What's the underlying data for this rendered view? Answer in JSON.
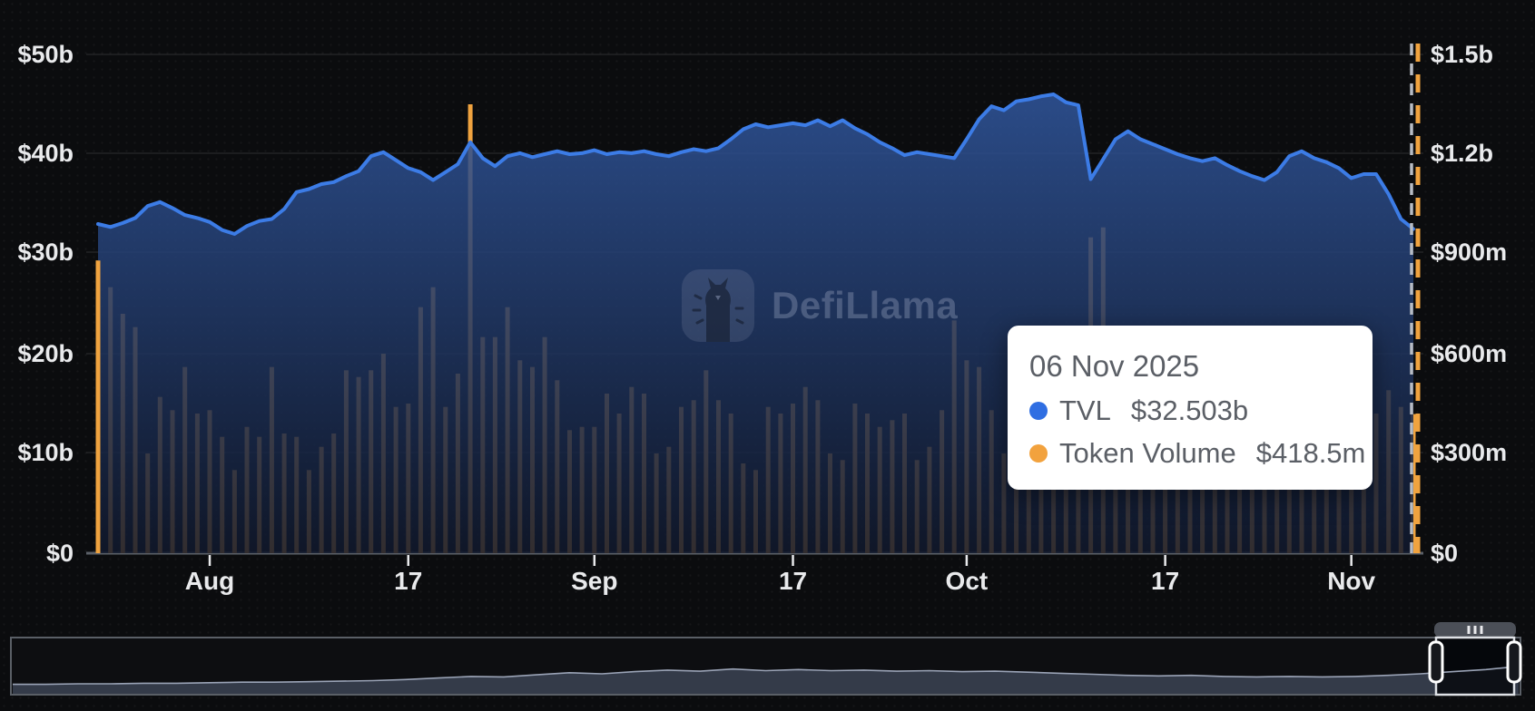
{
  "watermark": {
    "brand": "DefiLlama",
    "logo_icon": "llama-logo-icon"
  },
  "tooltip": {
    "date": "06 Nov 2025",
    "rows": [
      {
        "label": "TVL",
        "value": "$32.503b",
        "color": "#2f6ee2"
      },
      {
        "label": "Token Volume",
        "value": "$418.5m",
        "color": "#f2a23e"
      }
    ]
  },
  "axes": {
    "left_ticks": [
      "$50b",
      "$40b",
      "$30b",
      "$20b",
      "$10b",
      "$0"
    ],
    "right_ticks": [
      "$1.5b",
      "$1.2b",
      "$900m",
      "$600m",
      "$300m",
      "$0"
    ],
    "x_ticks": [
      "Aug",
      "17",
      "Sep",
      "17",
      "Oct",
      "17",
      "Nov"
    ]
  },
  "colors": {
    "background": "#0b0c0e",
    "tvl_line": "#3c7ce6",
    "area_top": "rgba(49,88,160,0.85)",
    "area_bottom": "rgba(16,24,44,0.85)",
    "volume_bar": "#f0a33f",
    "axis_text": "#e9eaec",
    "baseline": "#5b6068",
    "gridline": "rgba(255,255,255,0.07)",
    "crosshair_gray": "#b7bcc4",
    "tooltip_text": "#5b5f66",
    "navigator_border": "#5a5f66",
    "navigator_fill": "#394050",
    "navigator_line": "#9aa3b6",
    "handle_stroke": "#ffffff",
    "tab_fill": "#4b4f57"
  },
  "chart_data": {
    "type": "mixed",
    "title": "",
    "x_start_date": "2025-07-23",
    "x_end_date": "2025-11-06",
    "x_frequency": "daily",
    "x_tick_labels": [
      "Aug",
      "17",
      "Sep",
      "17",
      "Oct",
      "17",
      "Nov"
    ],
    "x_tick_day_indices": [
      9,
      25,
      40,
      56,
      70,
      86,
      101
    ],
    "left_axis": {
      "label": "TVL",
      "unit": "$b",
      "range": [
        0,
        50
      ],
      "ticks": [
        0,
        10,
        20,
        30,
        40,
        50
      ]
    },
    "right_axis": {
      "label": "Token Volume",
      "unit": "$m",
      "range": [
        0,
        1500
      ],
      "ticks": [
        0,
        300,
        600,
        900,
        1200,
        1500
      ]
    },
    "grid": "horizontal-faint",
    "legend_position": "tooltip-only",
    "highlighted_date": "06 Nov 2025",
    "highlighted_values": {
      "TVL": "$32.503b",
      "Token Volume": "$418.5m"
    },
    "series": [
      {
        "name": "TVL",
        "type": "area",
        "axis": "left",
        "unit": "$b",
        "color": "#3c7ce6",
        "values": [
          33.0,
          32.7,
          33.1,
          33.6,
          34.8,
          35.2,
          34.6,
          33.9,
          33.6,
          33.2,
          32.4,
          32.0,
          32.8,
          33.3,
          33.5,
          34.5,
          36.2,
          36.5,
          37.0,
          37.2,
          37.8,
          38.3,
          39.8,
          40.2,
          39.4,
          38.6,
          38.2,
          37.4,
          38.2,
          39.0,
          41.2,
          39.6,
          38.8,
          39.8,
          40.1,
          39.7,
          40.0,
          40.3,
          40.0,
          40.1,
          40.4,
          40.0,
          40.2,
          40.1,
          40.3,
          40.0,
          39.8,
          40.2,
          40.5,
          40.3,
          40.6,
          41.5,
          42.5,
          43.0,
          42.7,
          42.9,
          43.1,
          42.9,
          43.4,
          42.8,
          43.4,
          42.6,
          42.0,
          41.2,
          40.6,
          39.9,
          40.2,
          40.0,
          39.8,
          39.6,
          41.5,
          43.5,
          44.8,
          44.4,
          45.3,
          45.5,
          45.8,
          46.0,
          45.2,
          44.9,
          37.5,
          39.5,
          41.5,
          42.3,
          41.5,
          41.0,
          40.5,
          40.0,
          39.6,
          39.3,
          39.6,
          38.9,
          38.3,
          37.8,
          37.4,
          38.2,
          39.8,
          40.3,
          39.6,
          39.2,
          38.6,
          37.6,
          38.0,
          38.0,
          36.0,
          33.5,
          32.503
        ]
      },
      {
        "name": "Token Volume",
        "type": "bar",
        "axis": "right",
        "unit": "$m",
        "color": "#f0a33f",
        "values": [
          880,
          800,
          720,
          680,
          300,
          470,
          430,
          560,
          420,
          430,
          350,
          250,
          380,
          350,
          560,
          360,
          350,
          250,
          320,
          360,
          550,
          530,
          550,
          600,
          440,
          450,
          740,
          800,
          440,
          540,
          1350,
          650,
          650,
          740,
          580,
          560,
          650,
          520,
          370,
          380,
          380,
          480,
          420,
          500,
          480,
          300,
          320,
          440,
          460,
          550,
          460,
          420,
          270,
          250,
          440,
          420,
          450,
          500,
          460,
          300,
          280,
          450,
          420,
          380,
          400,
          420,
          280,
          320,
          430,
          700,
          580,
          560,
          430,
          300,
          330,
          450,
          460,
          430,
          460,
          550,
          950,
          980,
          530,
          450,
          420,
          380,
          560,
          450,
          370,
          450,
          440,
          430,
          380,
          350,
          310,
          330,
          450,
          560,
          490,
          460,
          430,
          380,
          330,
          420,
          490,
          440,
          418.5
        ]
      }
    ],
    "navigator": {
      "description": "full-history TVL minimap with brush selection at far right",
      "profile": [
        0.18,
        0.18,
        0.19,
        0.19,
        0.2,
        0.2,
        0.21,
        0.22,
        0.22,
        0.23,
        0.24,
        0.25,
        0.27,
        0.3,
        0.33,
        0.32,
        0.36,
        0.4,
        0.38,
        0.42,
        0.45,
        0.43,
        0.47,
        0.44,
        0.46,
        0.44,
        0.45,
        0.43,
        0.44,
        0.42,
        0.43,
        0.41,
        0.39,
        0.37,
        0.35,
        0.34,
        0.35,
        0.33,
        0.32,
        0.33,
        0.32,
        0.33,
        0.35,
        0.38,
        0.42,
        0.46,
        0.52
      ]
    }
  }
}
